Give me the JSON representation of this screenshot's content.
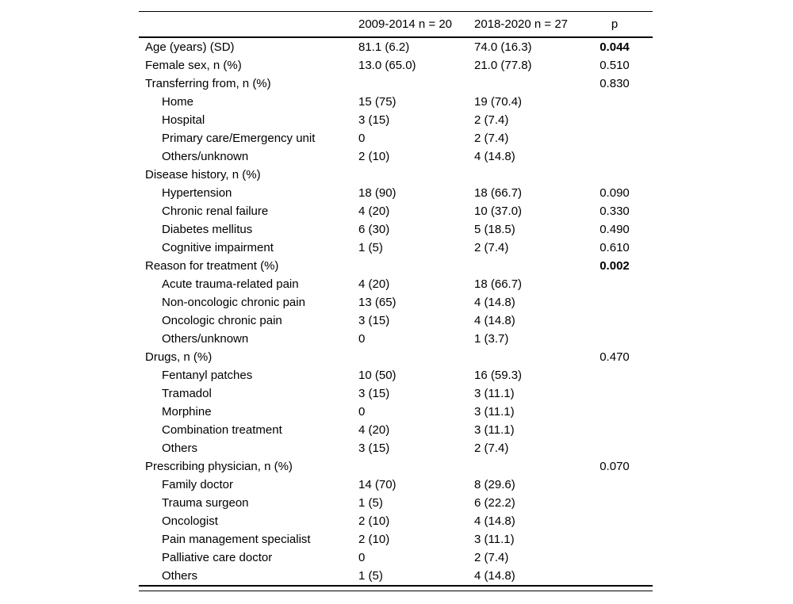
{
  "table": {
    "header": {
      "label": "",
      "group1": "2009-2014 n = 20",
      "group2": "2018-2020 n = 27",
      "p": "p"
    },
    "rows": [
      {
        "label": "Age (years) (SD)",
        "indent": false,
        "group1": "81.1 (6.2)",
        "group2": "74.0 (16.3)",
        "p": "0.044",
        "p_bold": true
      },
      {
        "label": "Female sex, n (%)",
        "indent": false,
        "group1": "13.0 (65.0)",
        "group2": "21.0 (77.8)",
        "p": "0.510",
        "p_bold": false
      },
      {
        "label": "Transferring from, n (%)",
        "indent": false,
        "group1": "",
        "group2": "",
        "p": "0.830",
        "p_bold": false
      },
      {
        "label": "Home",
        "indent": true,
        "group1": "15 (75)",
        "group2": "19 (70.4)",
        "p": "",
        "p_bold": false
      },
      {
        "label": "Hospital",
        "indent": true,
        "group1": "3 (15)",
        "group2": "2 (7.4)",
        "p": "",
        "p_bold": false
      },
      {
        "label": "Primary care/Emergency unit",
        "indent": true,
        "group1": "0",
        "group2": "2 (7.4)",
        "p": "",
        "p_bold": false
      },
      {
        "label": "Others/unknown",
        "indent": true,
        "group1": "2 (10)",
        "group2": "4 (14.8)",
        "p": "",
        "p_bold": false
      },
      {
        "label": "Disease history, n (%)",
        "indent": false,
        "group1": "",
        "group2": "",
        "p": "",
        "p_bold": false
      },
      {
        "label": "Hypertension",
        "indent": true,
        "group1": "18 (90)",
        "group2": "18 (66.7)",
        "p": "0.090",
        "p_bold": false
      },
      {
        "label": "Chronic renal failure",
        "indent": true,
        "group1": "4 (20)",
        "group2": "10 (37.0)",
        "p": "0.330",
        "p_bold": false
      },
      {
        "label": "Diabetes mellitus",
        "indent": true,
        "group1": "6 (30)",
        "group2": "5 (18.5)",
        "p": "0.490",
        "p_bold": false
      },
      {
        "label": "Cognitive impairment",
        "indent": true,
        "group1": "1 (5)",
        "group2": "2 (7.4)",
        "p": "0.610",
        "p_bold": false
      },
      {
        "label": "Reason for treatment (%)",
        "indent": false,
        "group1": "",
        "group2": "",
        "p": "0.002",
        "p_bold": true
      },
      {
        "label": "Acute trauma-related pain",
        "indent": true,
        "group1": "4 (20)",
        "group2": "18 (66.7)",
        "p": "",
        "p_bold": false
      },
      {
        "label": "Non-oncologic chronic pain",
        "indent": true,
        "group1": "13 (65)",
        "group2": "4 (14.8)",
        "p": "",
        "p_bold": false
      },
      {
        "label": "Oncologic chronic pain",
        "indent": true,
        "group1": "3 (15)",
        "group2": "4 (14.8)",
        "p": "",
        "p_bold": false
      },
      {
        "label": "Others/unknown",
        "indent": true,
        "group1": "0",
        "group2": "1 (3.7)",
        "p": "",
        "p_bold": false
      },
      {
        "label": "Drugs, n (%)",
        "indent": false,
        "group1": "",
        "group2": "",
        "p": "0.470",
        "p_bold": false
      },
      {
        "label": "Fentanyl patches",
        "indent": true,
        "group1": "10 (50)",
        "group2": "16 (59.3)",
        "p": "",
        "p_bold": false
      },
      {
        "label": "Tramadol",
        "indent": true,
        "group1": "3 (15)",
        "group2": "3 (11.1)",
        "p": "",
        "p_bold": false
      },
      {
        "label": "Morphine",
        "indent": true,
        "group1": "0",
        "group2": "3 (11.1)",
        "p": "",
        "p_bold": false
      },
      {
        "label": "Combination treatment",
        "indent": true,
        "group1": "4 (20)",
        "group2": "3 (11.1)",
        "p": "",
        "p_bold": false
      },
      {
        "label": "Others",
        "indent": true,
        "group1": "3 (15)",
        "group2": "2 (7.4)",
        "p": "",
        "p_bold": false
      },
      {
        "label": "Prescribing physician, n (%)",
        "indent": false,
        "group1": "",
        "group2": "",
        "p": "0.070",
        "p_bold": false
      },
      {
        "label": "Family doctor",
        "indent": true,
        "group1": "14 (70)",
        "group2": "8 (29.6)",
        "p": "",
        "p_bold": false
      },
      {
        "label": "Trauma surgeon",
        "indent": true,
        "group1": "1 (5)",
        "group2": "6 (22.2)",
        "p": "",
        "p_bold": false
      },
      {
        "label": "Oncologist",
        "indent": true,
        "group1": "2 (10)",
        "group2": "4 (14.8)",
        "p": "",
        "p_bold": false
      },
      {
        "label": "Pain management specialist",
        "indent": true,
        "group1": "2 (10)",
        "group2": "3 (11.1)",
        "p": "",
        "p_bold": false
      },
      {
        "label": "Palliative care doctor",
        "indent": true,
        "group1": "0",
        "group2": "2 (7.4)",
        "p": "",
        "p_bold": false
      },
      {
        "label": "Others",
        "indent": true,
        "group1": "1 (5)",
        "group2": "4 (14.8)",
        "p": "",
        "p_bold": false
      }
    ],
    "text_color": "#000000",
    "rule_color": "#000000",
    "background_color": "#ffffff"
  }
}
